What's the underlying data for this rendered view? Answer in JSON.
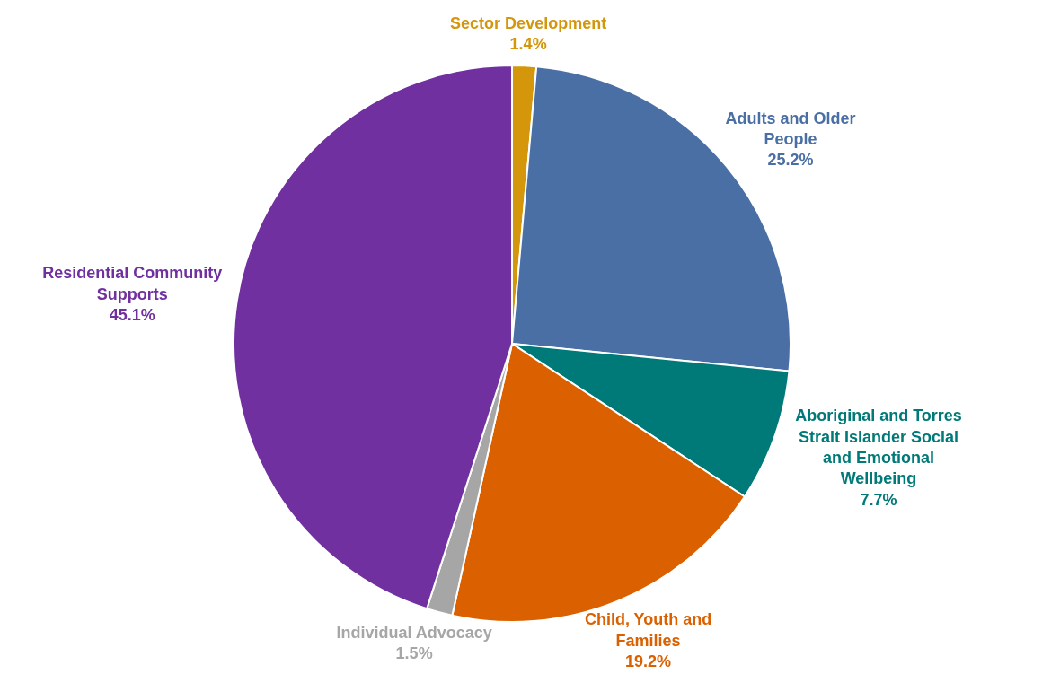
{
  "chart_data": {
    "type": "pie",
    "categories": [
      "Sector Development",
      "Adults and Older People",
      "Aboriginal and Torres Strait Islander Social and Emotional Wellbeing",
      "Child, Youth and Families",
      "Individual Advocacy",
      "Residential Community Supports"
    ],
    "values": [
      1.4,
      25.2,
      7.7,
      19.2,
      1.5,
      45.1
    ],
    "colors": [
      "#d4960a",
      "#4a6fa5",
      "#007a78",
      "#db6000",
      "#a6a6a6",
      "#7030a0"
    ],
    "value_labels": [
      "1.4%",
      "25.2%",
      "7.7%",
      "19.2%",
      "1.5%",
      "45.1%"
    ]
  }
}
